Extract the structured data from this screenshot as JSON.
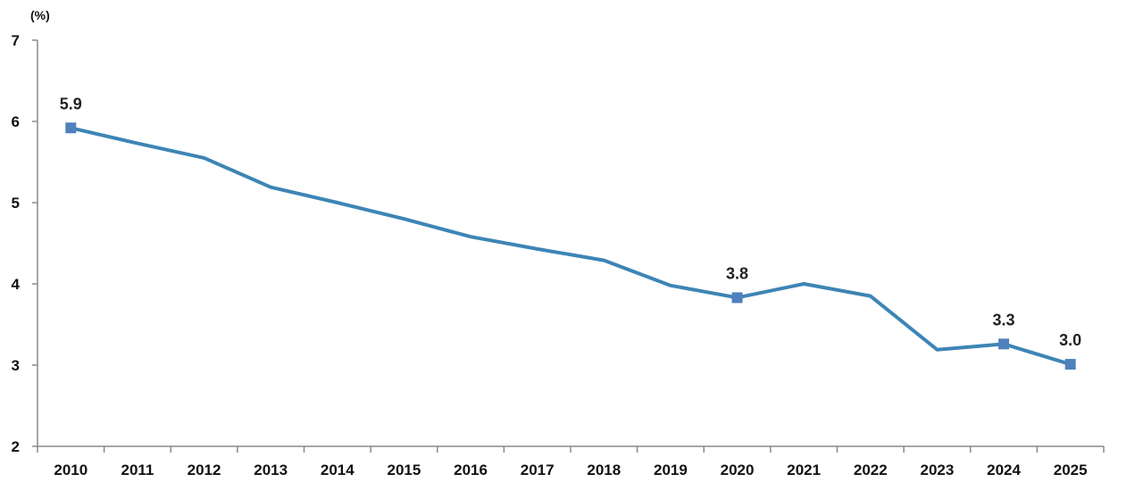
{
  "chart_data": {
    "type": "line",
    "title": "",
    "unit_label": "(%)",
    "xlabel": "",
    "ylabel": "",
    "x": [
      "2010",
      "2011",
      "2012",
      "2013",
      "2014",
      "2015",
      "2016",
      "2017",
      "2018",
      "2019",
      "2020",
      "2021",
      "2022",
      "2023",
      "2024",
      "2025"
    ],
    "series": [
      {
        "values": [
          5.92,
          5.73,
          5.55,
          5.19,
          5.0,
          4.8,
          4.58,
          4.43,
          4.29,
          3.98,
          3.83,
          4.0,
          3.85,
          3.19,
          3.26,
          3.01
        ],
        "color": "#3d85b5"
      }
    ],
    "data_labels": [
      {
        "x": "2010",
        "text": "5.9"
      },
      {
        "x": "2020",
        "text": "3.8"
      },
      {
        "x": "2024",
        "text": "3.3"
      },
      {
        "x": "2025",
        "text": "3.0"
      }
    ],
    "y_ticks": [
      2,
      3,
      4,
      5,
      6,
      7
    ],
    "ylim": [
      2,
      7
    ],
    "grid": false,
    "legend": "none"
  },
  "colors": {
    "line": "#3d85b5",
    "marker": "#4f81bd",
    "axis": "#8a8a8a",
    "text": "#111111"
  }
}
